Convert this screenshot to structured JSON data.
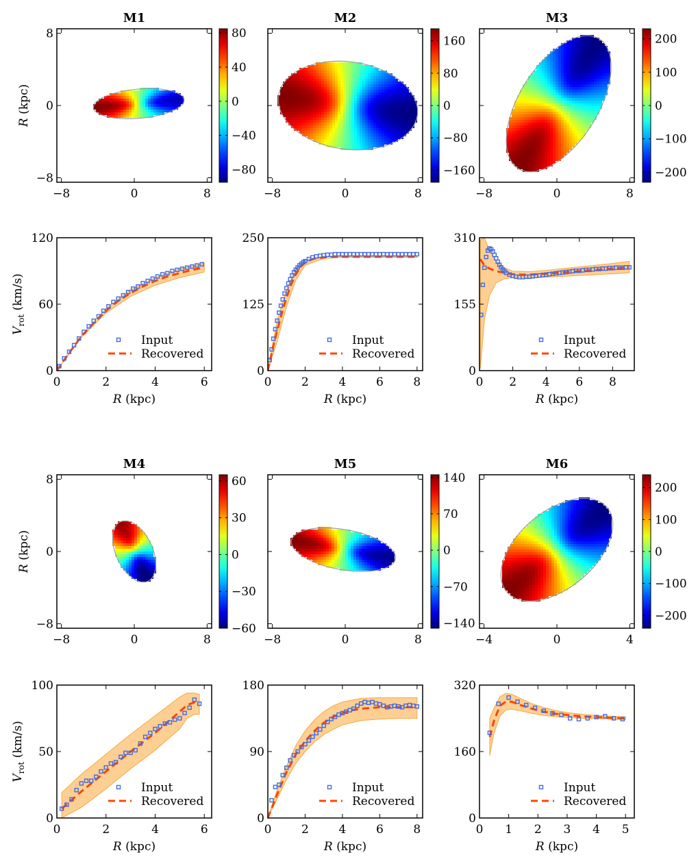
{
  "chart_data": [
    {
      "id": "M1",
      "type": "heatmap",
      "title": "M1",
      "ylabel": "R (kpc)",
      "xlim": [
        -8.5,
        8.5
      ],
      "ylim": [
        -8.5,
        8.5
      ],
      "xticks": [
        "-8",
        "0",
        "8"
      ],
      "yticks": [
        "8",
        "0",
        "-8"
      ],
      "colorbar": {
        "range": [
          -95,
          85
        ],
        "ticks": [
          "80",
          "40",
          "0",
          "-40",
          "-80"
        ]
      },
      "disk": {
        "cx": 0.5,
        "cy": 0.2,
        "a": 5.0,
        "b": 1.6,
        "pa": -5,
        "vmax": 85
      }
    },
    {
      "id": "M2",
      "type": "heatmap",
      "title": "M2",
      "xlim": [
        -8.5,
        8.5
      ],
      "ylim": [
        -8.5,
        8.5
      ],
      "xticks": [
        "-8",
        "0",
        "8"
      ],
      "colorbar": {
        "range": [
          -190,
          190
        ],
        "ticks": [
          "160",
          "80",
          "0",
          "-80",
          "-160"
        ]
      },
      "disk": {
        "cx": 0.3,
        "cy": 0.0,
        "a": 7.7,
        "b": 4.8,
        "pa": 8,
        "vmax": 190
      }
    },
    {
      "id": "M3",
      "type": "heatmap",
      "title": "M3",
      "xlim": [
        -8.5,
        8.5
      ],
      "ylim": [
        -8.5,
        8.5
      ],
      "xticks": [
        "-8",
        "0",
        "8"
      ],
      "colorbar": {
        "range": [
          -230,
          230
        ],
        "ticks": [
          "200",
          "100",
          "0",
          "-100",
          "-200"
        ]
      },
      "disk": {
        "cx": 0.2,
        "cy": 0.2,
        "a": 8.4,
        "b": 4.3,
        "pa": -58,
        "vmax": 230
      }
    },
    {
      "id": "M1v",
      "type": "line",
      "ylabel": "V_rot (km/s)",
      "xlabel": "R (kpc)",
      "xlim": [
        0,
        6.3
      ],
      "ylim": [
        0,
        120
      ],
      "xticks": [
        0,
        2,
        4,
        6
      ],
      "yticks": [
        0,
        60,
        120
      ],
      "legend": [
        "Input",
        "Recovered"
      ],
      "legend_position": "lower-right",
      "input": {
        "x": [
          0.1,
          0.3,
          0.5,
          0.7,
          0.9,
          1.1,
          1.3,
          1.5,
          1.7,
          1.9,
          2.1,
          2.3,
          2.5,
          2.7,
          2.9,
          3.1,
          3.3,
          3.5,
          3.7,
          3.9,
          4.1,
          4.3,
          4.5,
          4.7,
          4.9,
          5.1,
          5.3,
          5.5,
          5.7,
          5.9
        ],
        "y": [
          4,
          11,
          17,
          23,
          29,
          35,
          40,
          45,
          49,
          54,
          58,
          62,
          65,
          68,
          71,
          74,
          76,
          79,
          81,
          83,
          85,
          87,
          88,
          90,
          91,
          92,
          93,
          94,
          95,
          96
        ]
      },
      "recovered": {
        "x": [
          0,
          0.5,
          1,
          1.5,
          2,
          2.5,
          3,
          3.5,
          4,
          4.5,
          5,
          5.5,
          6
        ],
        "y": [
          0,
          16,
          31,
          43,
          54,
          63,
          70,
          76,
          81,
          85,
          88,
          91,
          93
        ]
      },
      "band": {
        "x": [
          0,
          1,
          2,
          3,
          4,
          5,
          6
        ],
        "upper": [
          0,
          32,
          56,
          73,
          84,
          92,
          97
        ],
        "lower": [
          0,
          30,
          52,
          67,
          77,
          84,
          89
        ]
      }
    },
    {
      "id": "M2v",
      "type": "line",
      "xlabel": "R (kpc)",
      "xlim": [
        0,
        8.3
      ],
      "ylim": [
        0,
        250
      ],
      "xticks": [
        0,
        2,
        4,
        6,
        8
      ],
      "yticks": [
        0,
        125,
        250
      ],
      "legend": [
        "Input",
        "Recovered"
      ],
      "legend_position": "lower-right",
      "input": {
        "x": [
          0.1,
          0.2,
          0.3,
          0.4,
          0.5,
          0.6,
          0.7,
          0.8,
          0.9,
          1.0,
          1.1,
          1.2,
          1.3,
          1.4,
          1.5,
          1.6,
          1.7,
          1.8,
          1.9,
          2.0,
          2.2,
          2.4,
          2.6,
          2.8,
          3.0,
          3.2,
          3.4,
          3.6,
          3.8,
          4.0,
          4.2,
          4.4,
          4.6,
          4.8,
          5.0,
          5.2,
          5.4,
          5.6,
          5.8,
          6.0,
          6.2,
          6.4,
          6.6,
          6.8,
          7.0,
          7.2,
          7.4,
          7.6,
          7.8,
          8.0
        ],
        "y": [
          20,
          40,
          60,
          78,
          94,
          109,
          122,
          134,
          145,
          155,
          164,
          172,
          179,
          185,
          190,
          194,
          198,
          201,
          204,
          206,
          210,
          213,
          215,
          216,
          217,
          218,
          218,
          219,
          219,
          219,
          219,
          219,
          219,
          219,
          219,
          219,
          219,
          219,
          219,
          219,
          219,
          219,
          219,
          219,
          219,
          219,
          219,
          219,
          219,
          219
        ]
      },
      "recovered": {
        "x": [
          0,
          0.25,
          0.5,
          0.75,
          1,
          1.25,
          1.5,
          1.75,
          2,
          2.5,
          3,
          3.5,
          4,
          5,
          6,
          7,
          8
        ],
        "y": [
          0,
          40,
          75,
          108,
          137,
          162,
          181,
          195,
          204,
          211,
          213,
          214,
          214,
          214,
          214,
          214,
          214
        ]
      },
      "band": {
        "x": [
          0,
          0.5,
          1,
          1.5,
          2,
          3,
          4,
          8
        ],
        "upper": [
          0,
          95,
          152,
          192,
          208,
          215,
          215,
          215
        ],
        "lower": [
          0,
          55,
          120,
          170,
          198,
          211,
          213,
          213
        ]
      }
    },
    {
      "id": "M3v",
      "type": "line",
      "xlabel": "R (kpc)",
      "xlim": [
        0,
        9.3
      ],
      "ylim": [
        0,
        310
      ],
      "xticks": [
        0,
        2,
        4,
        6,
        8
      ],
      "yticks": [
        0,
        155,
        310
      ],
      "legend": [
        "Input",
        "Recovered"
      ],
      "legend_position": "lower-right",
      "input": {
        "x": [
          0.1,
          0.2,
          0.3,
          0.4,
          0.5,
          0.6,
          0.7,
          0.8,
          0.9,
          1.0,
          1.1,
          1.2,
          1.3,
          1.4,
          1.5,
          1.6,
          1.8,
          2.0,
          2.2,
          2.4,
          2.6,
          2.8,
          3.0,
          3.2,
          3.4,
          3.6,
          3.8,
          4.0,
          4.2,
          4.4,
          4.6,
          4.8,
          5.0,
          5.2,
          5.4,
          5.6,
          5.8,
          6.0,
          6.2,
          6.4,
          6.6,
          6.8,
          7.0,
          7.2,
          7.4,
          7.6,
          7.8,
          8.0,
          8.2,
          8.4,
          8.6,
          8.8,
          9.0
        ],
        "y": [
          130,
          200,
          240,
          265,
          280,
          285,
          283,
          278,
          270,
          262,
          254,
          247,
          241,
          236,
          232,
          228,
          224,
          221,
          219,
          218,
          218,
          219,
          219,
          220,
          221,
          222,
          223,
          224,
          225,
          226,
          227,
          228,
          229,
          230,
          231,
          232,
          233,
          233,
          234,
          235,
          235,
          236,
          237,
          237,
          238,
          238,
          239,
          239,
          240,
          240,
          240,
          241,
          241
        ]
      },
      "recovered": {
        "x": [
          0.05,
          0.3,
          0.6,
          1,
          1.5,
          2,
          2.5,
          3,
          4,
          5,
          6,
          7,
          8,
          9
        ],
        "y": [
          260,
          245,
          238,
          232,
          228,
          225,
          224,
          224,
          226,
          229,
          232,
          235,
          238,
          241
        ]
      },
      "band": {
        "x": [
          0.05,
          0.3,
          0.6,
          1,
          1.5,
          2,
          3,
          4,
          5,
          6,
          7,
          8,
          9
        ],
        "upper": [
          305,
          310,
          280,
          255,
          240,
          232,
          231,
          234,
          238,
          242,
          246,
          250,
          255
        ],
        "lower": [
          5,
          120,
          175,
          205,
          214,
          217,
          217,
          218,
          220,
          222,
          224,
          226,
          228
        ]
      }
    },
    {
      "id": "M4",
      "type": "heatmap",
      "title": "M4",
      "ylabel": "R (kpc)",
      "xlim": [
        -8.5,
        8.5
      ],
      "ylim": [
        -8.5,
        8.5
      ],
      "xticks": [
        "-8",
        "0",
        "8"
      ],
      "yticks": [
        "8",
        "0",
        "-8"
      ],
      "colorbar": {
        "range": [
          -60,
          65
        ],
        "ticks": [
          "60",
          "30",
          "0",
          "-30",
          "-60"
        ]
      },
      "disk": {
        "cx": 0.0,
        "cy": 0.0,
        "a": 3.6,
        "b": 2.0,
        "pa": 65,
        "vmax": 62
      }
    },
    {
      "id": "M5",
      "type": "heatmap",
      "title": "M5",
      "xlim": [
        -8.5,
        8.5
      ],
      "ylim": [
        -8.5,
        8.5
      ],
      "xticks": [
        "-8",
        "0",
        "8"
      ],
      "colorbar": {
        "range": [
          -150,
          145
        ],
        "ticks": [
          "140",
          "70",
          "0",
          "-70",
          "-140"
        ]
      },
      "disk": {
        "cx": -0.2,
        "cy": 0.2,
        "a": 5.8,
        "b": 2.2,
        "pa": 10,
        "vmax": 145
      }
    },
    {
      "id": "M6",
      "type": "heatmap",
      "title": "M6",
      "xlim": [
        -4.25,
        4.25
      ],
      "ylim": [
        -4.25,
        4.25
      ],
      "xticks": [
        "-4",
        "0",
        "4"
      ],
      "colorbar": {
        "range": [
          -240,
          240
        ],
        "ticks": [
          "200",
          "100",
          "0",
          "-100",
          "-200"
        ]
      },
      "disk": {
        "cx": 0.0,
        "cy": 0.1,
        "a": 3.6,
        "b": 2.1,
        "pa": -40,
        "vmax": 240
      }
    },
    {
      "id": "M4v",
      "type": "line",
      "ylabel": "V_rot (km/s)",
      "xlabel": "R (kpc)",
      "xlim": [
        0,
        6.3
      ],
      "ylim": [
        0,
        100
      ],
      "xticks": [
        0,
        2,
        4,
        6
      ],
      "yticks": [
        0,
        50,
        100
      ],
      "legend": [
        "Input",
        "Recovered"
      ],
      "legend_position": "lower-right",
      "input": {
        "x": [
          0.2,
          0.4,
          0.6,
          0.8,
          1.0,
          1.2,
          1.4,
          1.6,
          1.8,
          2.0,
          2.2,
          2.4,
          2.6,
          2.8,
          3.0,
          3.2,
          3.4,
          3.6,
          3.8,
          4.0,
          4.2,
          4.4,
          4.6,
          4.8,
          5.0,
          5.2,
          5.4,
          5.6,
          5.8
        ],
        "y": [
          7,
          10,
          14,
          21,
          26,
          28,
          28,
          31,
          35,
          38,
          41,
          42,
          46,
          49,
          49,
          51,
          56,
          61,
          64,
          67,
          69,
          71,
          72,
          74,
          75,
          79,
          83,
          89,
          86
        ]
      },
      "recovered": {
        "x": [
          0.2,
          1,
          2,
          3,
          4,
          5,
          5.3,
          5.6,
          5.8
        ],
        "y": [
          7,
          20,
          35,
          50,
          64,
          80,
          85,
          87,
          86
        ]
      },
      "band": {
        "x": [
          0.2,
          1,
          2,
          3,
          4,
          5,
          5.3,
          5.6,
          5.8
        ],
        "upper": [
          19,
          33,
          48,
          63,
          77,
          91,
          94,
          94,
          93
        ],
        "lower": [
          0,
          8,
          22,
          37,
          51,
          67,
          75,
          78,
          78
        ]
      }
    },
    {
      "id": "M5v",
      "type": "line",
      "xlabel": "R (kpc)",
      "xlim": [
        0,
        8.3
      ],
      "ylim": [
        0,
        180
      ],
      "xticks": [
        0,
        2,
        4,
        6,
        8
      ],
      "yticks": [
        0,
        90,
        180
      ],
      "legend": [
        "Input",
        "Recovered"
      ],
      "legend_position": "lower-right",
      "input": {
        "x": [
          0.2,
          0.4,
          0.6,
          0.8,
          1.0,
          1.2,
          1.4,
          1.6,
          1.8,
          2.0,
          2.2,
          2.4,
          2.6,
          2.8,
          3.0,
          3.2,
          3.4,
          3.6,
          3.8,
          4.0,
          4.2,
          4.4,
          4.6,
          4.8,
          5.0,
          5.2,
          5.4,
          5.6,
          5.8,
          6.0,
          6.2,
          6.4,
          6.6,
          6.8,
          7.0,
          7.2,
          7.4,
          7.6,
          7.8,
          8.0
        ],
        "y": [
          24,
          42,
          45,
          58,
          68,
          78,
          85,
          90,
          96,
          100,
          105,
          110,
          115,
          120,
          125,
          130,
          134,
          137,
          140,
          142,
          144,
          146,
          148,
          152,
          155,
          157,
          156,
          157,
          155,
          154,
          152,
          150,
          151,
          152,
          151,
          150,
          152,
          153,
          152,
          151
        ]
      },
      "recovered": {
        "x": [
          0,
          0.5,
          1,
          1.5,
          2,
          2.5,
          3,
          3.5,
          4,
          4.5,
          5,
          5.5,
          6,
          7,
          8
        ],
        "y": [
          0,
          32,
          62,
          86,
          104,
          118,
          129,
          137,
          142,
          146,
          148,
          149,
          150,
          150,
          150
        ]
      },
      "band": {
        "x": [
          0,
          0.5,
          1,
          1.5,
          2,
          2.5,
          3,
          3.5,
          4,
          5,
          6,
          7,
          8
        ],
        "upper": [
          0,
          38,
          70,
          98,
          118,
          133,
          144,
          152,
          157,
          162,
          163,
          163,
          163
        ],
        "lower": [
          0,
          26,
          52,
          74,
          90,
          103,
          113,
          120,
          126,
          132,
          134,
          135,
          135
        ]
      }
    },
    {
      "id": "M6v",
      "type": "line",
      "xlabel": "R (kpc)",
      "xlim": [
        0,
        5.3
      ],
      "ylim": [
        0,
        320
      ],
      "xticks": [
        0,
        1,
        2,
        3,
        4,
        5
      ],
      "yticks": [
        0,
        160,
        320
      ],
      "legend": [
        "Input",
        "Recovered"
      ],
      "legend_position": "lower-right",
      "input": {
        "x": [
          0.35,
          0.65,
          1.0,
          1.3,
          1.6,
          1.9,
          2.2,
          2.5,
          2.8,
          3.1,
          3.4,
          3.7,
          4.0,
          4.3,
          4.6,
          4.9
        ],
        "y": [
          205,
          275,
          290,
          280,
          272,
          265,
          258,
          252,
          248,
          240,
          238,
          240,
          243,
          245,
          240,
          238
        ]
      },
      "recovered": {
        "x": [
          0.35,
          0.5,
          0.7,
          0.9,
          1.1,
          1.4,
          1.8,
          2.2,
          2.6,
          3.0,
          3.5,
          4.0,
          4.5,
          5.0
        ],
        "y": [
          195,
          235,
          270,
          280,
          280,
          272,
          263,
          256,
          251,
          248,
          245,
          243,
          241,
          240
        ]
      },
      "band": {
        "x": [
          0.35,
          0.5,
          0.7,
          0.9,
          1.1,
          1.4,
          1.8,
          2.2,
          2.6,
          3.0,
          3.5,
          4.0,
          4.5,
          5.0
        ],
        "upper": [
          240,
          265,
          292,
          300,
          298,
          288,
          275,
          266,
          259,
          254,
          250,
          247,
          245,
          244
        ],
        "lower": [
          150,
          205,
          245,
          260,
          262,
          258,
          252,
          247,
          244,
          242,
          240,
          239,
          238,
          237
        ]
      }
    }
  ]
}
